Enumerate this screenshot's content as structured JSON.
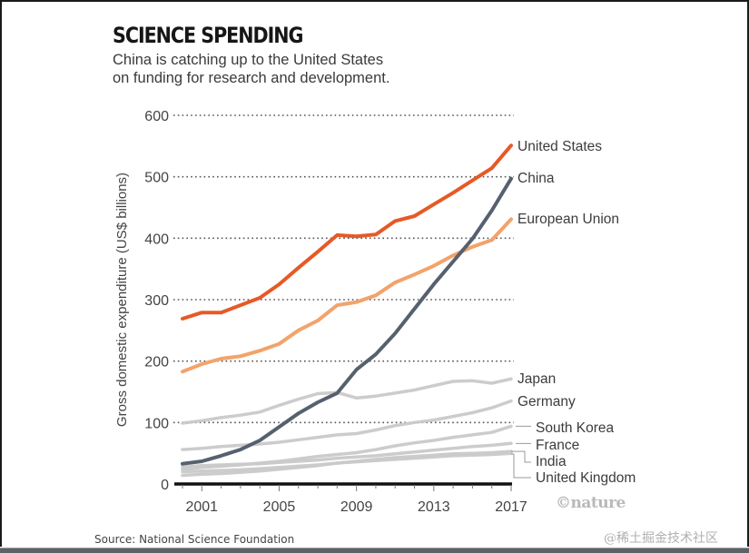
{
  "header": {
    "title": "SCIENCE SPENDING",
    "subtitle_line1": "China is catching up to the United States",
    "subtitle_line2": "on funding for research and development."
  },
  "footer": {
    "source": "Source: National Science Foundation",
    "logo": "©nature",
    "watermark": "@稀土掘金技术社区"
  },
  "chart_data": {
    "type": "line",
    "title": "SCIENCE SPENDING",
    "subtitle": "China is catching up to the United States on funding for research and development.",
    "xlabel": "",
    "ylabel": "Gross domestic expenditure (US$ billions)",
    "x": [
      2000,
      2001,
      2002,
      2003,
      2004,
      2005,
      2006,
      2007,
      2008,
      2009,
      2010,
      2011,
      2012,
      2013,
      2014,
      2015,
      2016,
      2017
    ],
    "xticks": [
      "2001",
      "2005",
      "2009",
      "2013",
      "2017"
    ],
    "xtick_values": [
      2001,
      2005,
      2009,
      2013,
      2017
    ],
    "yticks": [
      "0",
      "100",
      "200",
      "300",
      "400",
      "500",
      "600"
    ],
    "ytick_values": [
      0,
      100,
      200,
      300,
      400,
      500,
      600
    ],
    "xlim": [
      2000,
      2017
    ],
    "ylim": [
      0,
      600
    ],
    "grid": "horizontal-dotted",
    "legend": "direct-labels-right",
    "series": [
      {
        "name": "Japan",
        "color": "#c9c9c9",
        "style": "muted",
        "values": [
          99,
          103,
          108,
          112,
          117,
          128,
          138,
          147,
          149,
          140,
          143,
          148,
          153,
          160,
          167,
          168,
          164,
          171
        ]
      },
      {
        "name": "Germany",
        "color": "#c9c9c9",
        "style": "muted",
        "values": [
          56,
          58,
          61,
          63,
          65,
          68,
          72,
          76,
          80,
          82,
          88,
          95,
          100,
          104,
          110,
          116,
          124,
          135
        ]
      },
      {
        "name": "South Korea",
        "color": "#c9c9c9",
        "style": "muted",
        "values": [
          24,
          27,
          29,
          31,
          34,
          37,
          41,
          45,
          48,
          51,
          56,
          62,
          67,
          71,
          76,
          80,
          84,
          94
        ]
      },
      {
        "name": "France",
        "color": "#c9c9c9",
        "style": "muted",
        "values": [
          28,
          30,
          31,
          32,
          33,
          35,
          37,
          39,
          42,
          44,
          46,
          49,
          52,
          55,
          58,
          61,
          63,
          66
        ]
      },
      {
        "name": "India",
        "color": "#c9c9c9",
        "style": "muted",
        "values": [
          14,
          16,
          17,
          19,
          21,
          24,
          27,
          30,
          34,
          37,
          40,
          43,
          45,
          47,
          49,
          50,
          51,
          53
        ]
      },
      {
        "name": "United Kingdom",
        "color": "#c9c9c9",
        "style": "muted",
        "values": [
          20,
          21,
          22,
          23,
          25,
          27,
          29,
          31,
          34,
          36,
          38,
          40,
          42,
          44,
          46,
          47,
          48,
          50
        ]
      },
      {
        "name": "European Union",
        "color": "#f2a36b",
        "style": "highlight",
        "values": [
          183,
          195,
          204,
          208,
          217,
          228,
          250,
          266,
          291,
          296,
          307,
          328,
          341,
          355,
          372,
          386,
          397,
          431
        ]
      },
      {
        "name": "China",
        "color": "#56606e",
        "style": "highlight",
        "values": [
          33,
          37,
          46,
          56,
          71,
          93,
          115,
          133,
          148,
          186,
          211,
          245,
          285,
          325,
          362,
          399,
          445,
          497
        ]
      },
      {
        "name": "United States",
        "color": "#e55a26",
        "style": "highlight",
        "values": [
          269,
          279,
          279,
          291,
          303,
          325,
          352,
          378,
          405,
          403,
          406,
          428,
          436,
          455,
          474,
          494,
          514,
          551
        ]
      }
    ],
    "labels": [
      {
        "series": "United States",
        "text": "United States"
      },
      {
        "series": "China",
        "text": "China"
      },
      {
        "series": "European Union",
        "text": "European Union"
      },
      {
        "series": "Japan",
        "text": "Japan"
      },
      {
        "series": "Germany",
        "text": "Germany"
      },
      {
        "series": "South Korea",
        "text": "South Korea"
      },
      {
        "series": "France",
        "text": "France"
      },
      {
        "series": "India",
        "text": "India"
      },
      {
        "series": "United Kingdom",
        "text": "United Kingdom"
      }
    ]
  }
}
